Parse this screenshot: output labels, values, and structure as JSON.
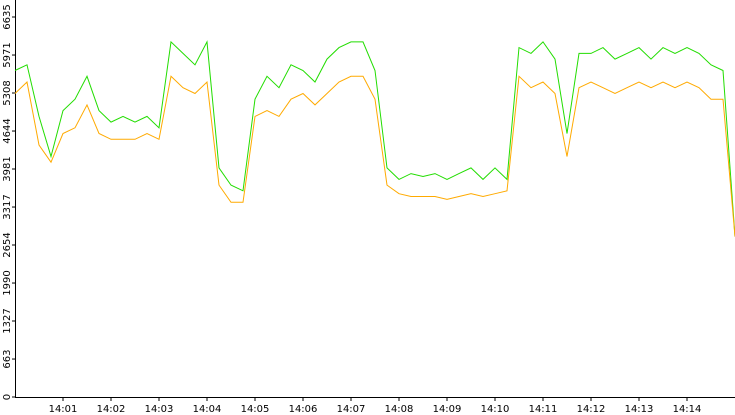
{
  "chart_data": {
    "type": "line",
    "x": [
      0,
      0.25,
      0.5,
      0.75,
      1,
      1.25,
      1.5,
      1.75,
      2,
      2.25,
      2.5,
      2.75,
      3,
      3.25,
      3.5,
      3.75,
      4,
      4.25,
      4.5,
      4.75,
      5,
      5.25,
      5.5,
      5.75,
      6,
      6.25,
      6.5,
      6.75,
      7,
      7.25,
      7.5,
      7.75,
      8,
      8.25,
      8.5,
      8.75,
      9,
      9.25,
      9.5,
      9.75,
      10,
      10.25,
      10.5,
      10.75,
      11,
      11.25,
      11.5,
      11.75,
      12,
      12.25,
      12.5,
      12.75,
      13,
      13.25,
      13.5,
      13.75,
      14,
      14.25,
      14.5,
      14.75,
      15
    ],
    "series": [
      {
        "color": "#22dd00",
        "values": [
          5700,
          5800,
          4900,
          4200,
          5000,
          5200,
          5600,
          5000,
          4800,
          4900,
          4800,
          4900,
          4700,
          6200,
          6000,
          5800,
          6200,
          4000,
          3700,
          3600,
          5200,
          5600,
          5400,
          5800,
          5700,
          5500,
          5900,
          6100,
          6200,
          6200,
          5700,
          4000,
          3800,
          3900,
          3850,
          3900,
          3800,
          3900,
          4000,
          3800,
          4000,
          3800,
          6100,
          6000,
          6200,
          5900,
          4600,
          6000,
          6000,
          6100,
          5900,
          6000,
          6100,
          5900,
          6100,
          6000,
          6100,
          6000,
          5800,
          5700,
          2800
        ]
      },
      {
        "color": "#ffaa00",
        "values": [
          5300,
          5500,
          4400,
          4100,
          4600,
          4700,
          5100,
          4600,
          4500,
          4500,
          4500,
          4600,
          4500,
          5600,
          5400,
          5300,
          5500,
          3700,
          3400,
          3400,
          4900,
          5000,
          4900,
          5200,
          5300,
          5100,
          5300,
          5500,
          5600,
          5600,
          5200,
          3700,
          3550,
          3500,
          3500,
          3500,
          3450,
          3500,
          3550,
          3500,
          3550,
          3600,
          5600,
          5400,
          5500,
          5300,
          4200,
          5400,
          5500,
          5400,
          5300,
          5400,
          5500,
          5400,
          5500,
          5400,
          5500,
          5400,
          5200,
          5200,
          2800
        ]
      }
    ],
    "xlim": [
      0,
      15
    ],
    "xticks": [
      {
        "value": 1,
        "label": "14:01"
      },
      {
        "value": 2,
        "label": "14:02"
      },
      {
        "value": 3,
        "label": "14:03"
      },
      {
        "value": 4,
        "label": "14:04"
      },
      {
        "value": 5,
        "label": "14:05"
      },
      {
        "value": 6,
        "label": "14:06"
      },
      {
        "value": 7,
        "label": "14:07"
      },
      {
        "value": 8,
        "label": "14:08"
      },
      {
        "value": 9,
        "label": "14:09"
      },
      {
        "value": 10,
        "label": "14:10"
      },
      {
        "value": 11,
        "label": "14:11"
      },
      {
        "value": 12,
        "label": "14:12"
      },
      {
        "value": 13,
        "label": "14:13"
      },
      {
        "value": 14,
        "label": "14:14"
      }
    ],
    "ylim": [
      0,
      6635
    ],
    "yticks": [
      0,
      663,
      1327,
      1990,
      2654,
      3317,
      3981,
      4644,
      5308,
      5971,
      6635
    ]
  }
}
